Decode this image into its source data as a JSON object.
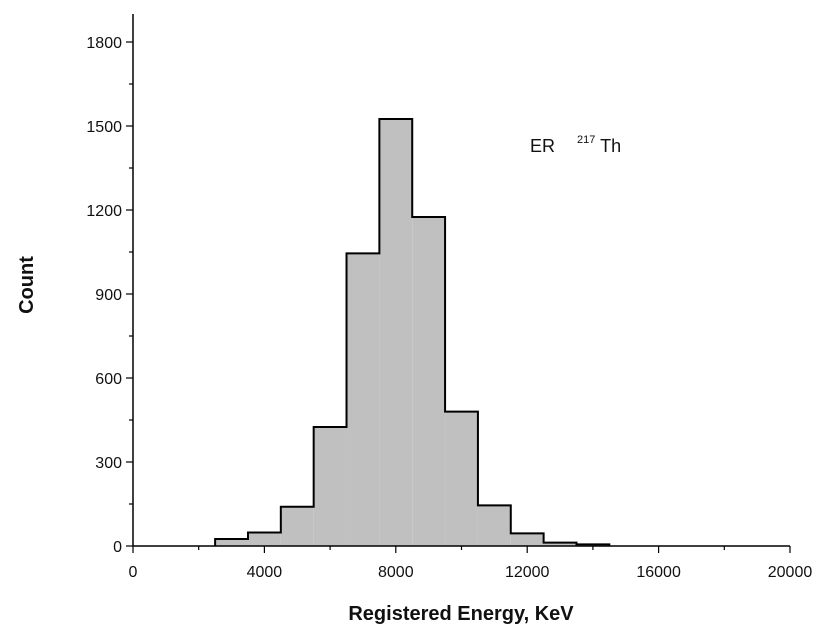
{
  "chart_data": {
    "type": "bar",
    "subtype": "histogram",
    "title": "",
    "xlabel": "Registered Energy, KeV",
    "ylabel": "Count",
    "xlim": [
      0,
      20000
    ],
    "ylim": [
      0,
      1900
    ],
    "x_ticks": [
      0,
      4000,
      8000,
      12000,
      16000,
      20000
    ],
    "x_tick_labels": [
      "0",
      "4000",
      "8000",
      "12000",
      "16000",
      "20000"
    ],
    "y_ticks": [
      0,
      300,
      600,
      900,
      1200,
      1500,
      1800
    ],
    "y_tick_labels": [
      "0",
      "300",
      "600",
      "900",
      "1200",
      "1500",
      "1800"
    ],
    "bin_width": 1000,
    "bins": [
      {
        "x0": 2500,
        "x1": 3500,
        "count": 25
      },
      {
        "x0": 3500,
        "x1": 4500,
        "count": 48
      },
      {
        "x0": 4500,
        "x1": 5500,
        "count": 140
      },
      {
        "x0": 5500,
        "x1": 6500,
        "count": 425
      },
      {
        "x0": 6500,
        "x1": 7500,
        "count": 1045
      },
      {
        "x0": 7500,
        "x1": 8500,
        "count": 1525
      },
      {
        "x0": 8500,
        "x1": 9500,
        "count": 1175
      },
      {
        "x0": 9500,
        "x1": 10500,
        "count": 480
      },
      {
        "x0": 10500,
        "x1": 11500,
        "count": 145
      },
      {
        "x0": 11500,
        "x1": 12500,
        "count": 45
      },
      {
        "x0": 12500,
        "x1": 13500,
        "count": 12
      },
      {
        "x0": 13500,
        "x1": 14500,
        "count": 6
      }
    ],
    "annotation": {
      "prefix": "ER",
      "superscript": "217",
      "suffix": "Th"
    },
    "fill_color": "#c0c0c0",
    "stroke_color": "#000000",
    "grid": false,
    "legend": "none"
  }
}
